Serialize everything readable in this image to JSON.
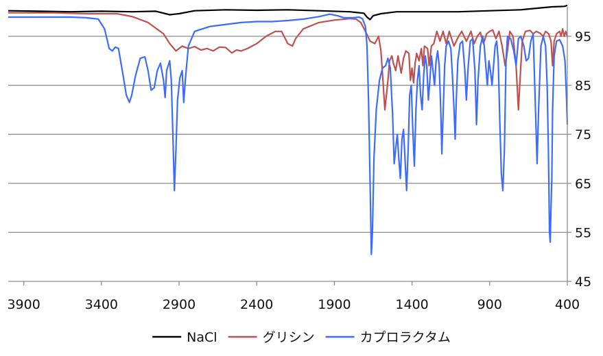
{
  "chart_data": {
    "type": "line",
    "title": "",
    "xlabel": "",
    "ylabel": "",
    "xlim": [
      4000,
      400
    ],
    "x_reversed": true,
    "ylim": [
      45,
      101
    ],
    "x_ticks": [
      3900,
      3400,
      2900,
      2400,
      1900,
      1400,
      900,
      400
    ],
    "x_tick_labels": [
      "3900",
      "3400",
      "2900",
      "2400",
      "1900",
      "1400",
      "900",
      "400"
    ],
    "y_ticks": [
      45,
      55,
      65,
      75,
      85,
      95
    ],
    "y_tick_labels": [
      "45",
      "55",
      "65",
      "75",
      "85",
      "95"
    ],
    "y_axis_side": "right",
    "grid": {
      "horizontal": true,
      "vertical": false
    },
    "legend": {
      "position": "bottom-center"
    },
    "series": [
      {
        "name": "NaCl",
        "color": "#000000",
        "points": [
          [
            4000,
            100.2
          ],
          [
            3800,
            100.1
          ],
          [
            3600,
            100.0
          ],
          [
            3400,
            100.1
          ],
          [
            3200,
            100.0
          ],
          [
            3050,
            100.1
          ],
          [
            2960,
            99.4
          ],
          [
            2900,
            99.6
          ],
          [
            2800,
            100.2
          ],
          [
            2600,
            100.4
          ],
          [
            2400,
            100.3
          ],
          [
            2200,
            100.4
          ],
          [
            2000,
            100.2
          ],
          [
            1800,
            100.0
          ],
          [
            1740,
            99.8
          ],
          [
            1710,
            99.7
          ],
          [
            1690,
            98.9
          ],
          [
            1670,
            98.4
          ],
          [
            1650,
            99.2
          ],
          [
            1600,
            99.6
          ],
          [
            1500,
            100.0
          ],
          [
            1300,
            100.0
          ],
          [
            1100,
            100.0
          ],
          [
            900,
            100.2
          ],
          [
            700,
            100.4
          ],
          [
            600,
            100.7
          ],
          [
            500,
            101.0
          ],
          [
            420,
            101.1
          ],
          [
            400,
            101.3
          ]
        ]
      },
      {
        "name": "グリシン",
        "color": "#c0504d",
        "points": [
          [
            4000,
            99.8
          ],
          [
            3700,
            99.8
          ],
          [
            3500,
            99.6
          ],
          [
            3300,
            99.6
          ],
          [
            3200,
            99.0
          ],
          [
            3100,
            97.8
          ],
          [
            3000,
            95.5
          ],
          [
            2960,
            93.5
          ],
          [
            2920,
            92.0
          ],
          [
            2880,
            93.0
          ],
          [
            2840,
            92.5
          ],
          [
            2800,
            92.9
          ],
          [
            2760,
            92.2
          ],
          [
            2720,
            92.5
          ],
          [
            2680,
            92.0
          ],
          [
            2640,
            92.8
          ],
          [
            2600,
            92.7
          ],
          [
            2560,
            91.6
          ],
          [
            2530,
            92.2
          ],
          [
            2500,
            92.0
          ],
          [
            2460,
            92.5
          ],
          [
            2400,
            93.5
          ],
          [
            2340,
            95.0
          ],
          [
            2280,
            96.0
          ],
          [
            2240,
            96.0
          ],
          [
            2200,
            93.5
          ],
          [
            2170,
            93.0
          ],
          [
            2150,
            94.5
          ],
          [
            2100,
            96.5
          ],
          [
            2000,
            97.8
          ],
          [
            1900,
            98.3
          ],
          [
            1800,
            98.6
          ],
          [
            1760,
            98.5
          ],
          [
            1730,
            97.8
          ],
          [
            1700,
            96.0
          ],
          [
            1670,
            94.0
          ],
          [
            1640,
            93.5
          ],
          [
            1615,
            95.0
          ],
          [
            1600,
            92.0
          ],
          [
            1585,
            85.0
          ],
          [
            1575,
            80.0
          ],
          [
            1565,
            83.0
          ],
          [
            1555,
            86.0
          ],
          [
            1545,
            90.0
          ],
          [
            1530,
            91.0
          ],
          [
            1520,
            89.5
          ],
          [
            1505,
            88.0
          ],
          [
            1490,
            91.0
          ],
          [
            1470,
            87.5
          ],
          [
            1455,
            90.5
          ],
          [
            1440,
            92.0
          ],
          [
            1420,
            91.5
          ],
          [
            1410,
            86.0
          ],
          [
            1400,
            88.5
          ],
          [
            1390,
            85.5
          ],
          [
            1380,
            89.5
          ],
          [
            1370,
            91.5
          ],
          [
            1355,
            90.0
          ],
          [
            1340,
            92.5
          ],
          [
            1330,
            89.0
          ],
          [
            1320,
            93.0
          ],
          [
            1300,
            92.5
          ],
          [
            1290,
            89.0
          ],
          [
            1275,
            93.0
          ],
          [
            1260,
            93.5
          ],
          [
            1240,
            96.0
          ],
          [
            1220,
            94.0
          ],
          [
            1200,
            96.0
          ],
          [
            1180,
            93.5
          ],
          [
            1160,
            96.0
          ],
          [
            1130,
            93.0
          ],
          [
            1100,
            95.0
          ],
          [
            1080,
            96.0
          ],
          [
            1050,
            94.0
          ],
          [
            1020,
            96.0
          ],
          [
            1000,
            93.5
          ],
          [
            980,
            95.0
          ],
          [
            960,
            95.8
          ],
          [
            940,
            93.5
          ],
          [
            920,
            95.5
          ],
          [
            900,
            96.0
          ],
          [
            880,
            96.3
          ],
          [
            860,
            94.5
          ],
          [
            840,
            96.0
          ],
          [
            820,
            93.0
          ],
          [
            800,
            89.0
          ],
          [
            790,
            91.0
          ],
          [
            770,
            96.0
          ],
          [
            750,
            95.0
          ],
          [
            730,
            89.0
          ],
          [
            715,
            80.0
          ],
          [
            705,
            86.0
          ],
          [
            690,
            94.0
          ],
          [
            670,
            96.0
          ],
          [
            640,
            96.2
          ],
          [
            620,
            95.5
          ],
          [
            600,
            96.0
          ],
          [
            575,
            95.6
          ],
          [
            555,
            95.0
          ],
          [
            540,
            96.0
          ],
          [
            520,
            95.5
          ],
          [
            505,
            94.0
          ],
          [
            495,
            89.0
          ],
          [
            485,
            94.0
          ],
          [
            470,
            95.5
          ],
          [
            450,
            96.0
          ],
          [
            440,
            95.0
          ],
          [
            430,
            96.5
          ],
          [
            420,
            95.0
          ],
          [
            410,
            96.0
          ],
          [
            400,
            95.0
          ]
        ]
      },
      {
        "name": "カプロラクタム",
        "color": "#3d6bff",
        "points": [
          [
            4000,
            98.9
          ],
          [
            3800,
            98.9
          ],
          [
            3600,
            98.9
          ],
          [
            3500,
            98.8
          ],
          [
            3420,
            98.5
          ],
          [
            3380,
            96.5
          ],
          [
            3350,
            92.5
          ],
          [
            3330,
            92.0
          ],
          [
            3310,
            92.8
          ],
          [
            3290,
            92.5
          ],
          [
            3260,
            87.0
          ],
          [
            3240,
            83.0
          ],
          [
            3220,
            81.5
          ],
          [
            3205,
            83.0
          ],
          [
            3180,
            87.0
          ],
          [
            3150,
            90.5
          ],
          [
            3120,
            90.8
          ],
          [
            3100,
            88.0
          ],
          [
            3080,
            84.0
          ],
          [
            3060,
            84.5
          ],
          [
            3040,
            88.0
          ],
          [
            3020,
            89.5
          ],
          [
            3000,
            86.0
          ],
          [
            2990,
            82.5
          ],
          [
            2980,
            88.0
          ],
          [
            2960,
            90.0
          ],
          [
            2950,
            86.0
          ],
          [
            2940,
            75.0
          ],
          [
            2930,
            63.5
          ],
          [
            2920,
            72.0
          ],
          [
            2910,
            82.0
          ],
          [
            2895,
            86.5
          ],
          [
            2880,
            88.0
          ],
          [
            2870,
            81.5
          ],
          [
            2860,
            86.0
          ],
          [
            2840,
            93.0
          ],
          [
            2800,
            96.0
          ],
          [
            2700,
            97.0
          ],
          [
            2500,
            97.8
          ],
          [
            2400,
            98.0
          ],
          [
            2300,
            98.0
          ],
          [
            2200,
            98.2
          ],
          [
            2100,
            98.5
          ],
          [
            2000,
            99.0
          ],
          [
            1930,
            99.5
          ],
          [
            1880,
            99.2
          ],
          [
            1840,
            98.8
          ],
          [
            1780,
            98.8
          ],
          [
            1740,
            98.9
          ],
          [
            1720,
            98.6
          ],
          [
            1700,
            97.0
          ],
          [
            1690,
            93.0
          ],
          [
            1680,
            82.0
          ],
          [
            1670,
            65.0
          ],
          [
            1662,
            50.5
          ],
          [
            1655,
            55.0
          ],
          [
            1645,
            70.0
          ],
          [
            1630,
            80.0
          ],
          [
            1610,
            86.0
          ],
          [
            1590,
            88.5
          ],
          [
            1570,
            89.0
          ],
          [
            1555,
            90.5
          ],
          [
            1540,
            88.5
          ],
          [
            1525,
            79.0
          ],
          [
            1515,
            69.0
          ],
          [
            1505,
            72.0
          ],
          [
            1495,
            75.0
          ],
          [
            1485,
            70.0
          ],
          [
            1475,
            66.0
          ],
          [
            1465,
            74.0
          ],
          [
            1455,
            76.0
          ],
          [
            1445,
            70.0
          ],
          [
            1435,
            63.5
          ],
          [
            1425,
            72.0
          ],
          [
            1415,
            83.0
          ],
          [
            1405,
            85.0
          ],
          [
            1395,
            76.0
          ],
          [
            1385,
            68.5
          ],
          [
            1375,
            80.0
          ],
          [
            1365,
            86.0
          ],
          [
            1355,
            89.0
          ],
          [
            1345,
            83.0
          ],
          [
            1335,
            80.0
          ],
          [
            1325,
            87.0
          ],
          [
            1315,
            91.0
          ],
          [
            1305,
            89.0
          ],
          [
            1295,
            82.0
          ],
          [
            1285,
            86.0
          ],
          [
            1275,
            91.0
          ],
          [
            1265,
            88.0
          ],
          [
            1255,
            85.0
          ],
          [
            1245,
            90.0
          ],
          [
            1235,
            92.0
          ],
          [
            1225,
            89.0
          ],
          [
            1215,
            80.0
          ],
          [
            1208,
            71.0
          ],
          [
            1200,
            79.0
          ],
          [
            1190,
            89.0
          ],
          [
            1180,
            93.0
          ],
          [
            1165,
            94.0
          ],
          [
            1150,
            92.5
          ],
          [
            1140,
            87.0
          ],
          [
            1130,
            80.5
          ],
          [
            1122,
            74.0
          ],
          [
            1115,
            82.0
          ],
          [
            1105,
            90.0
          ],
          [
            1090,
            93.5
          ],
          [
            1075,
            94.0
          ],
          [
            1060,
            88.0
          ],
          [
            1050,
            82.0
          ],
          [
            1040,
            88.0
          ],
          [
            1025,
            94.0
          ],
          [
            1010,
            94.5
          ],
          [
            995,
            88.0
          ],
          [
            985,
            77.0
          ],
          [
            975,
            86.0
          ],
          [
            960,
            93.0
          ],
          [
            945,
            95.0
          ],
          [
            935,
            93.0
          ],
          [
            925,
            89.0
          ],
          [
            915,
            85.0
          ],
          [
            905,
            90.0
          ],
          [
            895,
            88.0
          ],
          [
            885,
            85.0
          ],
          [
            875,
            89.0
          ],
          [
            865,
            93.0
          ],
          [
            855,
            94.0
          ],
          [
            845,
            90.0
          ],
          [
            835,
            78.0
          ],
          [
            825,
            67.0
          ],
          [
            815,
            63.5
          ],
          [
            805,
            72.0
          ],
          [
            795,
            90.0
          ],
          [
            785,
            95.0
          ],
          [
            765,
            94.5
          ],
          [
            745,
            92.0
          ],
          [
            730,
            89.0
          ],
          [
            715,
            94.5
          ],
          [
            700,
            95.0
          ],
          [
            680,
            93.0
          ],
          [
            665,
            90.0
          ],
          [
            650,
            90.5
          ],
          [
            635,
            94.0
          ],
          [
            620,
            95.5
          ],
          [
            605,
            80.0
          ],
          [
            595,
            69.0
          ],
          [
            585,
            80.0
          ],
          [
            570,
            93.0
          ],
          [
            555,
            95.0
          ],
          [
            540,
            93.0
          ],
          [
            530,
            85.0
          ],
          [
            522,
            72.0
          ],
          [
            515,
            55.0
          ],
          [
            510,
            53.0
          ],
          [
            505,
            60.0
          ],
          [
            500,
            66.0
          ],
          [
            495,
            80.0
          ],
          [
            485,
            91.0
          ],
          [
            470,
            94.0
          ],
          [
            450,
            94.3
          ],
          [
            430,
            93.0
          ],
          [
            415,
            90.0
          ],
          [
            405,
            82.0
          ],
          [
            400,
            77.0
          ]
        ]
      }
    ]
  }
}
